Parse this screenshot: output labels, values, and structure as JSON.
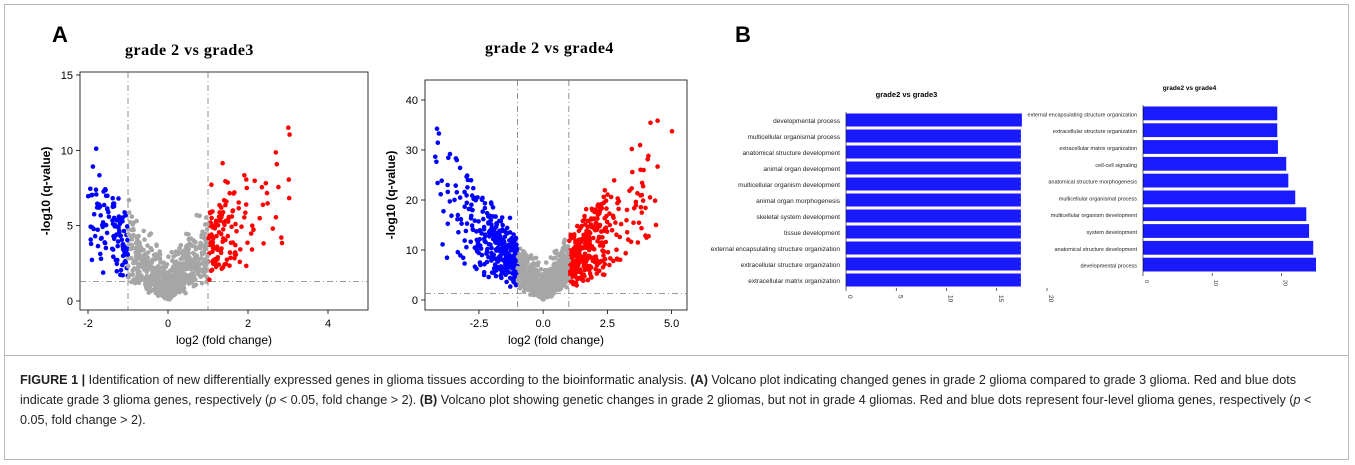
{
  "panel_A_letter": "A",
  "panel_B_letter": "B",
  "chart_data": [
    {
      "type": "scatter",
      "title": "grade 2  vs  grade3",
      "xlabel": "log2 (fold change)",
      "ylabel": "-log10 (q-value)",
      "xticks": [
        -2,
        0,
        2,
        4
      ],
      "yticks": [
        0,
        5,
        10,
        15
      ],
      "xlim": [
        -2.2,
        5.0
      ],
      "ylim": [
        -0.6,
        15.2
      ],
      "fold_change_thresholds": [
        -1,
        1
      ],
      "significance_threshold": 1.3,
      "point_colors": {
        "up": "#ff0000",
        "down": "#0000ff",
        "ns": "#a6a6a6"
      },
      "volcano_points_note": "Dot positions are procedurally generated in the script (no individual values are readable)."
    },
    {
      "type": "scatter",
      "title": "grade 2  vs  grade4",
      "xlabel": "log2 (fold change)",
      "ylabel": "-log10 (q-value)",
      "xticks": [
        -2.5,
        0.0,
        2.5,
        5.0
      ],
      "xtick_labels": [
        "-2.5",
        "0.0",
        "2.5",
        "5.0"
      ],
      "yticks": [
        0,
        10,
        20,
        30,
        40
      ],
      "xlim": [
        -4.6,
        5.6
      ],
      "ylim": [
        -2,
        44
      ],
      "fold_change_thresholds": [
        -1,
        1
      ],
      "significance_threshold": 1.3,
      "point_colors": {
        "up": "#ff0000",
        "down": "#0000ff",
        "ns": "#a6a6a6"
      }
    },
    {
      "type": "bar",
      "orientation": "horizontal",
      "title": "grade2 vs grade3",
      "categories": [
        "developmental process",
        "multicellular organismal process",
        "anatomical structure development",
        "animal organ development",
        "multicellular organism development",
        "animal organ morphogenesis",
        "skeletal system development",
        "tissue development",
        "external encapsulating structure organization",
        "extracellular structure organization",
        "extracellular matrix organization"
      ],
      "values": [
        17.5,
        17.4,
        17.4,
        17.4,
        17.4,
        17.4,
        17.4,
        17.4,
        17.4,
        17.4,
        17.4
      ],
      "xticks": [
        0,
        5,
        10,
        15,
        20
      ],
      "xlim": [
        0,
        20
      ],
      "bar_color": "#1a1aff"
    },
    {
      "type": "bar",
      "orientation": "horizontal",
      "title": "grade2 vs grade4",
      "categories": [
        "external encapsulating structure organization",
        "extracellular structure organization",
        "extracellular matrix organization",
        "cell-cell signaling",
        "anatomical structure morphogenesis",
        "multicellular organismal process",
        "multicellular organism development",
        "system development",
        "anatomical structure development",
        "developmental process"
      ],
      "values": [
        19.4,
        19.4,
        19.5,
        20.7,
        21.0,
        22.0,
        23.6,
        24.0,
        24.6,
        25.0
      ],
      "xticks": [
        0,
        10,
        20
      ],
      "xlim": [
        0,
        25
      ],
      "bar_color": "#1a1aff"
    }
  ],
  "caption": {
    "figure_label": "FIGURE 1 |",
    "intro": " Identification of new differentially expressed genes in glioma tissues according to the bioinformatic analysis. ",
    "label_A": "(A)",
    "text_A_1": " Volcano plot indicating changed genes in grade 2 glioma compared to grade 3 glioma. Red and blue dots indicate grade 3 glioma genes, respectively (",
    "p": "p",
    "text_A_2": " < 0.05, fold change > 2). ",
    "label_B": "(B)",
    "text_B_1": " Volcano plot showing genetic changes in grade 2 gliomas, but not in grade 4 gliomas. Red and blue dots represent four-level glioma genes, respectively (",
    "text_B_2": " < 0.05, fold change > 2)."
  }
}
